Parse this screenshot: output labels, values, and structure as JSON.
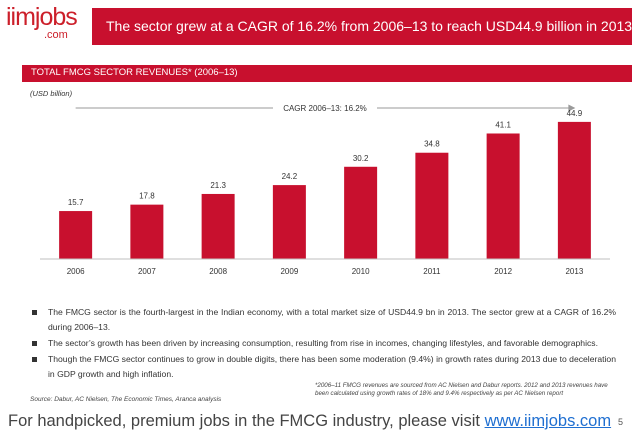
{
  "logo": {
    "brand": "iimjobs",
    "tld": ".com"
  },
  "header": {
    "title": "The sector grew at a CAGR of 16.2% from 2006–13 to reach USD44.9 billion in 2013"
  },
  "section": {
    "title": "TOTAL FMCG SECTOR REVENUES* (2006–13)"
  },
  "colors": {
    "accent": "#c8102e",
    "link": "#1f6fd1"
  },
  "chart_data": {
    "type": "bar",
    "unit_label": "(USD billion)",
    "categories": [
      "2006",
      "2007",
      "2008",
      "2009",
      "2010",
      "2011",
      "2012",
      "2013"
    ],
    "values": [
      15.7,
      17.8,
      21.3,
      24.2,
      30.2,
      34.8,
      41.1,
      44.9
    ],
    "value_labels": [
      "15.7",
      "17.8",
      "21.3",
      "24.2",
      "30.2",
      "34.8",
      "41.1",
      "44.9"
    ],
    "annotation": "CAGR 2006–13: 16.2%",
    "ylim": [
      0,
      50
    ],
    "grid": false,
    "legend": "none"
  },
  "bullets": [
    "The FMCG sector is the fourth-largest in the Indian economy, with a total market size of USD44.9 bn in 2013. The sector grew at a CAGR of 16.2% during 2006–13.",
    "The sector’s growth has been driven by increasing consumption, resulting from rise in incomes, changing lifestyles, and favorable demographics.",
    "Though the FMCG sector continues to grow in double digits, there has been some moderation (9.4%) in growth rates during 2013 due to deceleration in GDP growth and high inflation."
  ],
  "source": "Source: Dabur, AC Nielsen, The Economic Times, Aranca analysis",
  "footnote": "*2006–11 FMCG revenues are sourced from AC Nielsen and Dabur reports. 2012 and 2013 revenues have been calculated using growth rates of 18% and 9.4% respectively as per AC Nielsen report",
  "footer": {
    "text": "For handpicked, premium jobs in the FMCG industry, please visit ",
    "link": "www.iimjobs.com"
  },
  "page_number": "5"
}
